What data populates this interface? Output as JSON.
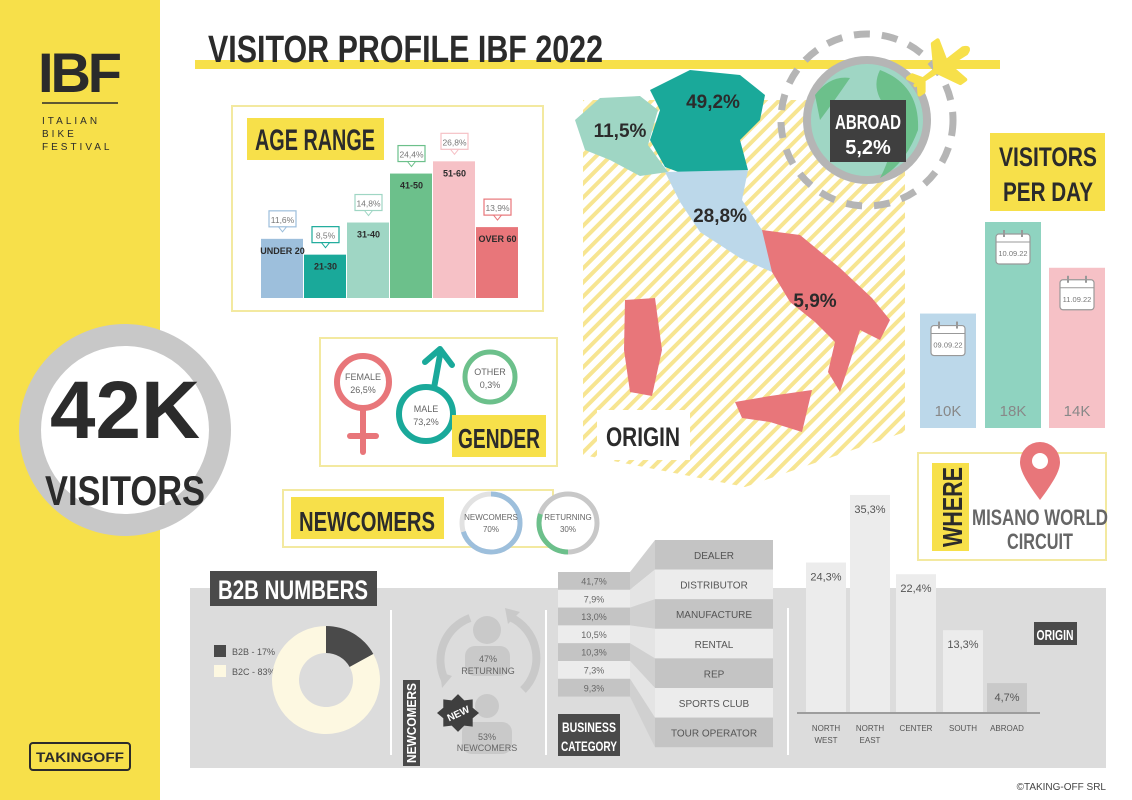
{
  "logo": {
    "name": "IBF",
    "subtitle_lines": [
      "ITALIAN",
      "BIKE",
      "FESTIVAL"
    ]
  },
  "title": "VISITOR PROFILE IBF 2022",
  "total": {
    "value": "42K",
    "label": "VISITORS"
  },
  "footer": {
    "brand": "TAKINGOFF",
    "copyright": "©TAKING-OFF SRL"
  },
  "colors": {
    "yellow": "#f7e04a",
    "dark": "#3f3f3f",
    "panel_gray": "#dcdcdc",
    "light_blue": "#9dbfdc",
    "teal": "#1aa99a",
    "mint": "#9fd6c4",
    "green": "#6cc08b",
    "pink": "#f6c1c6",
    "red": "#e8767a"
  },
  "where": {
    "label": "WHERE",
    "venue_lines": [
      "MISANO WORLD",
      "CIRCUIT"
    ],
    "icon": "map-pin-icon"
  },
  "chart_data": [
    {
      "type": "bar",
      "title": "AGE RANGE",
      "categories": [
        "UNDER 20",
        "21-30",
        "31-40",
        "41-50",
        "51-60",
        "OVER 60"
      ],
      "values": [
        11.6,
        8.5,
        14.8,
        24.4,
        26.8,
        13.9
      ],
      "labels": [
        "11,6%",
        "8,5%",
        "14,8%",
        "24,4%",
        "26,8%",
        "13,9%"
      ],
      "colors": [
        "#9dbfdc",
        "#1aa99a",
        "#9fd6c4",
        "#6cc08b",
        "#f6c1c6",
        "#e8767a"
      ],
      "unit": "%"
    },
    {
      "type": "pie",
      "title": "GENDER",
      "categories": [
        "FEMALE",
        "MALE",
        "OTHER"
      ],
      "values": [
        26.5,
        73.2,
        0.3
      ],
      "labels": [
        "26,5%",
        "73,2%",
        "0,3%"
      ],
      "colors": [
        "#e8767a",
        "#1aa99a",
        "#6cc08b"
      ]
    },
    {
      "type": "pie",
      "title": "NEWCOMERS",
      "categories": [
        "NEWCOMERS",
        "RETURNING"
      ],
      "values": [
        70,
        30
      ],
      "labels": [
        "70%",
        "30%"
      ],
      "colors": [
        "#9dbfdc",
        "#6cc08b"
      ]
    },
    {
      "type": "heatmap",
      "title": "ORIGIN",
      "categories": [
        "North West",
        "North East",
        "Center",
        "South",
        "Abroad"
      ],
      "values": [
        11.5,
        49.2,
        28.8,
        5.9,
        5.2
      ],
      "labels": [
        "11,5%",
        "49,2%",
        "28,8%",
        "5,9%",
        "5,2%"
      ],
      "abroad_label": "ABROAD",
      "colors": [
        "#9fd6c4",
        "#1aa99a",
        "#bcd8ea",
        "#e8767a",
        "#6cc08b"
      ]
    },
    {
      "type": "bar",
      "title_lines": [
        "VISITORS",
        "PER DAY"
      ],
      "categories": [
        "09.09.22",
        "10.09.22",
        "11.09.22"
      ],
      "values": [
        10000,
        18000,
        14000
      ],
      "labels": [
        "10K",
        "18K",
        "14K"
      ],
      "colors": [
        "#bcd8ea",
        "#8fd3c0",
        "#f6c1c6"
      ]
    },
    {
      "type": "pie",
      "title": "B2B NUMBERS",
      "categories": [
        "B2B",
        "B2C"
      ],
      "values": [
        17,
        83
      ],
      "legend": [
        "B2B - 17%",
        "B2C - 83%"
      ],
      "colors": [
        "#4a4a4a",
        "#fdf8e1"
      ],
      "legend_position": "left"
    },
    {
      "type": "pie",
      "title": "NEWCOMERS",
      "categories": [
        "RETURNING",
        "NEWCOMERS"
      ],
      "values": [
        47,
        53
      ],
      "labels": [
        "47%",
        "53%"
      ],
      "badge": "NEW"
    },
    {
      "type": "table",
      "title_lines": [
        "BUSINESS",
        "CATEGORY"
      ],
      "categories": [
        "DEALER",
        "DISTRIBUTOR",
        "MANUFACTURE",
        "RENTAL",
        "REP",
        "SPORTS CLUB",
        "TOUR OPERATOR"
      ],
      "values": [
        41.7,
        7.9,
        13.0,
        10.5,
        10.3,
        7.3,
        9.3
      ],
      "labels": [
        "41,7%",
        "7,9%",
        "13,0%",
        "10,5%",
        "10,3%",
        "7,3%",
        "9,3%"
      ]
    },
    {
      "type": "bar",
      "title": "ORIGIN",
      "categories": [
        [
          "NORTH",
          "WEST"
        ],
        [
          "NORTH",
          "EAST"
        ],
        [
          "CENTER"
        ],
        [
          "SOUTH"
        ],
        [
          "ABROAD"
        ]
      ],
      "values": [
        24.3,
        35.3,
        22.4,
        13.3,
        4.7
      ],
      "labels": [
        "24,3%",
        "35,3%",
        "22,4%",
        "13,3%",
        "4,7%"
      ],
      "colors": [
        "#ececec",
        "#ececec",
        "#ececec",
        "#ececec",
        "#c9c9c9"
      ]
    }
  ]
}
